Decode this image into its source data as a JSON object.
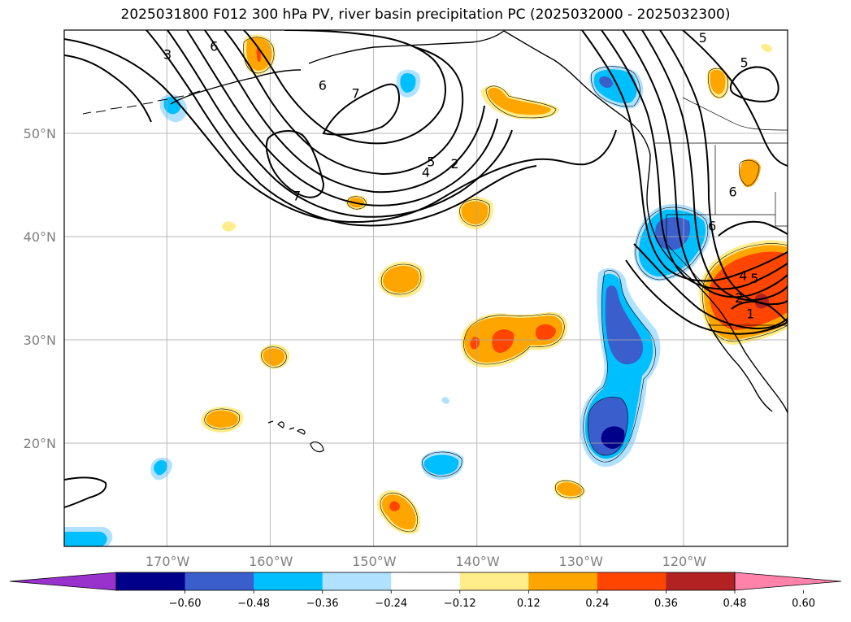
{
  "title": "2025031800 F012 300 hPa PV, river basin precipitation PC (2025032000 - 2025032300)",
  "map": {
    "extent": {
      "lon_min": -180,
      "lon_max": -110,
      "lat_min": 10,
      "lat_max": 60
    },
    "lat_ticks": [
      {
        "value": 20,
        "label": "20°N"
      },
      {
        "value": 30,
        "label": "30°N"
      },
      {
        "value": 40,
        "label": "40°N"
      },
      {
        "value": 50,
        "label": "50°N"
      }
    ],
    "lon_ticks": [
      {
        "value": -170,
        "label": "170°W"
      },
      {
        "value": -160,
        "label": "160°W"
      },
      {
        "value": -150,
        "label": "150°W"
      },
      {
        "value": -140,
        "label": "140°W"
      },
      {
        "value": -130,
        "label": "130°W"
      },
      {
        "value": -120,
        "label": "120°W"
      }
    ],
    "pv_contour_labels": [
      {
        "text": "3",
        "lon": -170,
        "lat": 57.6
      },
      {
        "text": "6",
        "lon": -165.5,
        "lat": 58.4
      },
      {
        "text": "6",
        "lon": -155,
        "lat": 54.6
      },
      {
        "text": "7",
        "lon": -151.8,
        "lat": 53.8
      },
      {
        "text": "7",
        "lon": -157.5,
        "lat": 43.9
      },
      {
        "text": "5",
        "lon": -144.5,
        "lat": 47.2
      },
      {
        "text": "4",
        "lon": -145,
        "lat": 46.2
      },
      {
        "text": "2",
        "lon": -142.2,
        "lat": 47.0
      },
      {
        "text": "5",
        "lon": -118.2,
        "lat": 59.2
      },
      {
        "text": "5",
        "lon": -114.2,
        "lat": 56.8
      },
      {
        "text": "6",
        "lon": -115.3,
        "lat": 44.3
      },
      {
        "text": "6",
        "lon": -117.3,
        "lat": 41.0
      },
      {
        "text": "5",
        "lon": -113.2,
        "lat": 35.9
      },
      {
        "text": "4",
        "lon": -114.3,
        "lat": 36.2
      },
      {
        "text": "2",
        "lon": -114.7,
        "lat": 34.0
      },
      {
        "text": "1",
        "lon": -113.6,
        "lat": 32.5
      }
    ]
  },
  "colorbar": {
    "colors": [
      "#9932cc",
      "#00008b",
      "#3a5fcd",
      "#00bfff",
      "#b0e2ff",
      "#ffffff",
      "#ffec8b",
      "#ffa500",
      "#ff4500",
      "#b22222",
      "#ff82ab"
    ],
    "ticks": [
      "−0.60",
      "−0.48",
      "−0.36",
      "−0.24",
      "−0.12",
      "0.12",
      "0.24",
      "0.36",
      "0.48",
      "0.60"
    ]
  }
}
